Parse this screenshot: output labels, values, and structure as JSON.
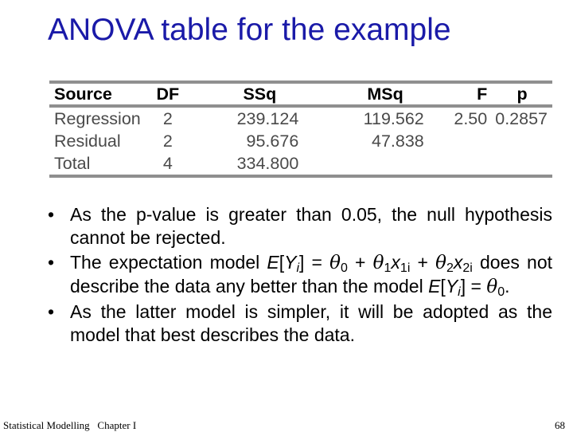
{
  "slide": {
    "title": "ANOVA table for the example",
    "table": {
      "headers": [
        "Source",
        "DF",
        "SSq",
        "MSq",
        "F",
        "p"
      ],
      "rows": [
        [
          "Regression",
          "2",
          "239.124",
          "119.562",
          "2.50",
          "0.2857"
        ],
        [
          "Residual",
          "2",
          "95.676",
          "47.838",
          "",
          ""
        ],
        [
          "Total",
          "4",
          "334.800",
          "",
          "",
          ""
        ]
      ]
    },
    "bullets": {
      "b1": "As the p-value is greater than 0.05, the null hypothesis cannot be rejected.",
      "b2": {
        "t1": "The expectation model ",
        "E": "E",
        "lb": "[",
        "Y": "Y",
        "i": "i",
        "rb": "] = ",
        "theta0": "θ",
        "sub0": "0",
        "plus1": " + ",
        "theta1": "θ",
        "sub1": "1",
        "x1": "x",
        "sub1i": "1i",
        "plus2": " + ",
        "theta2": "θ",
        "sub2": "2",
        "x2": "x",
        "sub2i": "2i",
        "t2": " does not describe the data any better than the model ",
        "E2": "E",
        "lb2": "[",
        "Y2": "Y",
        "i2": "i",
        "rb2": "] = ",
        "theta02": "θ",
        "sub02": "0",
        "end": "."
      },
      "b3": "As the latter model is simpler, it will be adopted as the model that best describes the data."
    },
    "bullet_char": "•",
    "footer_left": "Statistical Modelling   Chapter I",
    "page_number": "68"
  }
}
